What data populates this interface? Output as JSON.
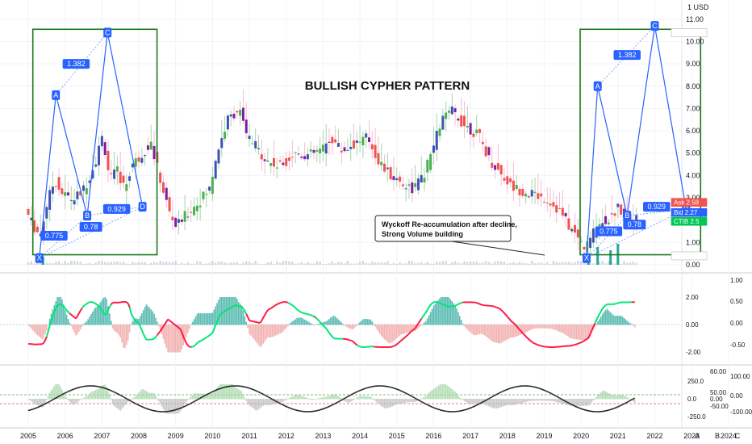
{
  "chart_data": {
    "type": "candlestick",
    "title": "BULLISH CYPHER PATTERN",
    "currency": "1 USD",
    "x_range": [
      2005.0,
      2023.5
    ],
    "x_tick_labels": [
      "2005",
      "2006",
      "2007",
      "2008",
      "2009",
      "2010",
      "2011",
      "2012",
      "2013",
      "2014",
      "2015",
      "2016",
      "2017",
      "2018",
      "2019",
      "2020",
      "2021",
      "2022",
      "2023",
      "2024"
    ],
    "y_range": [
      0.0,
      11.5
    ],
    "y_ticks": [
      0.0,
      1.0,
      2.0,
      3.0,
      4.0,
      5.0,
      6.0,
      7.0,
      8.0,
      9.0,
      10.0,
      11.0
    ],
    "y_tick_labels": [
      "0.00",
      "1.00",
      "2.00",
      "3.00",
      "4.00",
      "5.00",
      "6.00",
      "7.00",
      "8.00",
      "9.00",
      "10.00",
      "11.00"
    ],
    "price_path": [
      [
        2005.0,
        2.5
      ],
      [
        2005.2,
        1.8
      ],
      [
        2005.4,
        1.3
      ],
      [
        2005.6,
        2.8
      ],
      [
        2005.8,
        3.8
      ],
      [
        2006.0,
        3.2
      ],
      [
        2006.3,
        2.9
      ],
      [
        2006.6,
        3.4
      ],
      [
        2006.9,
        4.6
      ],
      [
        2007.1,
        5.8
      ],
      [
        2007.3,
        3.8
      ],
      [
        2007.5,
        4.2
      ],
      [
        2007.7,
        3.4
      ],
      [
        2007.9,
        4.5
      ],
      [
        2008.1,
        4.8
      ],
      [
        2008.4,
        5.5
      ],
      [
        2008.7,
        3.6
      ],
      [
        2008.9,
        2.4
      ],
      [
        2009.1,
        1.7
      ],
      [
        2009.4,
        2.3
      ],
      [
        2009.7,
        2.8
      ],
      [
        2010.0,
        3.4
      ],
      [
        2010.2,
        5.0
      ],
      [
        2010.5,
        6.5
      ],
      [
        2010.8,
        7.0
      ],
      [
        2011.0,
        5.8
      ],
      [
        2011.3,
        5.2
      ],
      [
        2011.6,
        4.6
      ],
      [
        2011.9,
        4.4
      ],
      [
        2012.3,
        5.0
      ],
      [
        2012.7,
        4.9
      ],
      [
        2013.1,
        5.2
      ],
      [
        2013.3,
        5.7
      ],
      [
        2013.6,
        5.1
      ],
      [
        2014.0,
        5.5
      ],
      [
        2014.3,
        5.7
      ],
      [
        2014.6,
        4.6
      ],
      [
        2014.9,
        4.0
      ],
      [
        2015.2,
        3.7
      ],
      [
        2015.5,
        3.4
      ],
      [
        2015.8,
        3.9
      ],
      [
        2016.0,
        4.9
      ],
      [
        2016.3,
        6.5
      ],
      [
        2016.6,
        6.9
      ],
      [
        2016.9,
        6.3
      ],
      [
        2017.3,
        5.8
      ],
      [
        2017.6,
        4.7
      ],
      [
        2017.9,
        4.1
      ],
      [
        2018.2,
        3.5
      ],
      [
        2018.5,
        3.3
      ],
      [
        2018.9,
        3.1
      ],
      [
        2019.2,
        2.9
      ],
      [
        2019.5,
        2.4
      ],
      [
        2019.8,
        1.6
      ],
      [
        2020.0,
        1.2
      ],
      [
        2020.2,
        0.7
      ],
      [
        2020.4,
        1.4
      ],
      [
        2020.6,
        1.9
      ],
      [
        2020.9,
        2.1
      ],
      [
        2021.1,
        2.6
      ],
      [
        2021.3,
        2.2
      ],
      [
        2021.5,
        2.0
      ]
    ],
    "patterns": [
      {
        "name": "cypher-2005",
        "points": [
          {
            "label": "X",
            "x": 2005.3,
            "y": 0.3
          },
          {
            "label": "A",
            "x": 2005.75,
            "y": 7.6
          },
          {
            "label": "B",
            "x": 2006.6,
            "y": 2.2
          },
          {
            "label": "C",
            "x": 2007.15,
            "y": 10.4
          },
          {
            "label": "D",
            "x": 2008.1,
            "y": 2.6
          }
        ],
        "ratios": [
          {
            "text": "1.382",
            "x": 2006.3,
            "y": 9.0
          },
          {
            "text": "0.775",
            "x": 2005.7,
            "y": 1.3
          },
          {
            "text": "0.78",
            "x": 2006.7,
            "y": 1.7
          },
          {
            "text": "0.929",
            "x": 2007.4,
            "y": 2.5
          }
        ]
      },
      {
        "name": "cypher-2020",
        "points": [
          {
            "label": "X",
            "x": 2020.15,
            "y": 0.3
          },
          {
            "label": "A",
            "x": 2020.45,
            "y": 8.0
          },
          {
            "label": "B",
            "x": 2021.25,
            "y": 2.2
          },
          {
            "label": "C",
            "x": 2022.0,
            "y": 10.7
          },
          {
            "label": "D",
            "x": 2022.85,
            "y": 2.5
          }
        ],
        "ratios": [
          {
            "text": "1.382",
            "x": 2021.25,
            "y": 9.4
          },
          {
            "text": "0.775",
            "x": 2020.75,
            "y": 1.5
          },
          {
            "text": "0.78",
            "x": 2021.45,
            "y": 1.8
          },
          {
            "text": "0.929",
            "x": 2022.05,
            "y": 2.6
          }
        ]
      }
    ],
    "annotation": "Wyckoff Re-accumulation after decline,\nStrong Volume building",
    "price_tags": [
      {
        "name": "High",
        "value": "10.39",
        "color": "#ffffff"
      },
      {
        "name": "Ask",
        "value": "2.58",
        "color": "#ef5350"
      },
      {
        "name": "Bid",
        "value": "2.27",
        "color": "#2962ff"
      },
      {
        "name": "CTIB",
        "value": "2.5",
        "color": "#00c853"
      },
      {
        "name": "Low",
        "value": "0.40",
        "color": "#ffffff"
      }
    ],
    "oscillator_1": {
      "right_ticks_inner": [
        "2.00",
        "0.00",
        "-2.00"
      ],
      "right_ticks_outer": [
        "1.00",
        "0.50",
        "0.00",
        "-0.50"
      ]
    },
    "oscillator_2": {
      "right_ticks_inner": [
        "250.0",
        "0.0",
        "-250.0"
      ],
      "right_ticks_mid": [
        "60.00",
        "50.00",
        "0.00",
        "-50.00"
      ],
      "right_ticks_outer": [
        "100.00",
        "0.00",
        "-100.00"
      ]
    },
    "footer_letters": [
      "A",
      "B",
      "C"
    ]
  },
  "colors": {
    "up": "#26a69a",
    "down": "#ef5350",
    "pattern_line": "#2962ff",
    "pattern_box": "#1b7a1b",
    "volume": "#26a69a"
  }
}
